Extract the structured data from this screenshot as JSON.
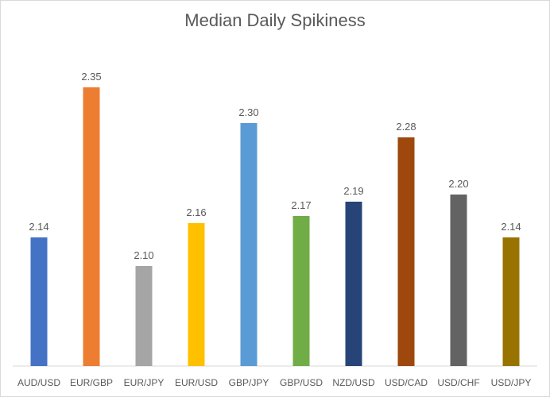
{
  "chart_data": {
    "type": "bar",
    "title": "Median Daily Spikiness",
    "xlabel": "",
    "ylabel": "",
    "categories": [
      "AUD/USD",
      "EUR/GBP",
      "EUR/JPY",
      "EUR/USD",
      "GBP/JPY",
      "GBP/USD",
      "NZD/USD",
      "USD/CAD",
      "USD/CHF",
      "USD/JPY"
    ],
    "values": [
      2.14,
      2.35,
      2.1,
      2.16,
      2.3,
      2.17,
      2.19,
      2.28,
      2.2,
      2.14
    ],
    "data_labels": [
      "2.14",
      "2.35",
      "2.10",
      "2.16",
      "2.30",
      "2.17",
      "2.19",
      "2.28",
      "2.20",
      "2.14"
    ],
    "colors": [
      "#4472C4",
      "#ED7D31",
      "#A5A5A5",
      "#FFC000",
      "#5B9BD5",
      "#70AD47",
      "#264478",
      "#9E480E",
      "#636363",
      "#997300"
    ],
    "ylim": [
      1.96,
      2.36
    ],
    "grid": false,
    "legend": "none",
    "axis_line_color": "#d9d9d9"
  }
}
